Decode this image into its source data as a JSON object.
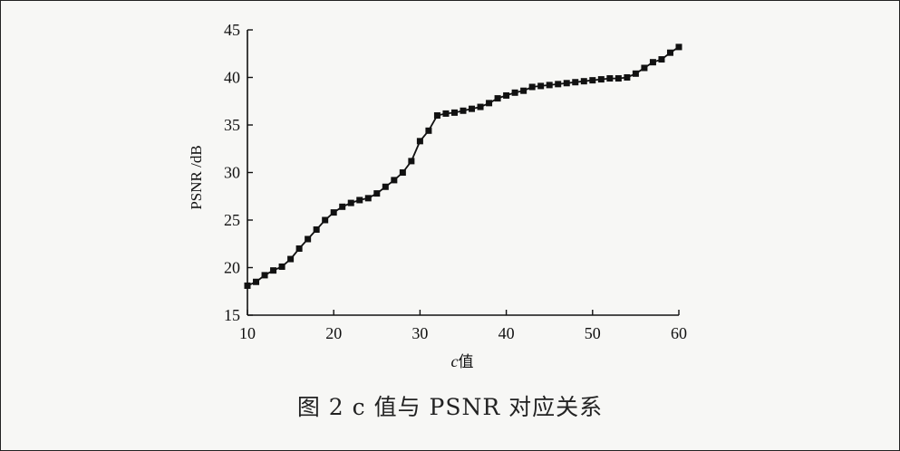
{
  "figure": {
    "caption": "图 2    c 值与 PSNR 对应关系"
  },
  "chart_data": {
    "type": "line",
    "xlabel_var": "c",
    "xlabel_suffix": "值",
    "ylabel": "PSNR /dB",
    "xlim": [
      10,
      60
    ],
    "ylim": [
      15,
      45
    ],
    "xticks": [
      10,
      20,
      30,
      40,
      50,
      60
    ],
    "yticks": [
      15,
      20,
      25,
      30,
      35,
      40,
      45
    ],
    "grid": false,
    "marker": "square",
    "x": [
      10,
      11,
      12,
      13,
      14,
      15,
      16,
      17,
      18,
      19,
      20,
      21,
      22,
      23,
      24,
      25,
      26,
      27,
      28,
      29,
      30,
      31,
      32,
      33,
      34,
      35,
      36,
      37,
      38,
      39,
      40,
      41,
      42,
      43,
      44,
      45,
      46,
      47,
      48,
      49,
      50,
      51,
      52,
      53,
      54,
      55,
      56,
      57,
      58,
      59,
      60
    ],
    "y": [
      18.1,
      18.5,
      19.2,
      19.7,
      20.1,
      20.9,
      22.0,
      23.0,
      24.0,
      25.0,
      25.8,
      26.4,
      26.8,
      27.1,
      27.3,
      27.8,
      28.5,
      29.2,
      30.0,
      31.2,
      33.3,
      34.4,
      36.0,
      36.2,
      36.3,
      36.5,
      36.7,
      36.9,
      37.3,
      37.8,
      38.1,
      38.4,
      38.6,
      39.0,
      39.1,
      39.2,
      39.3,
      39.4,
      39.5,
      39.6,
      39.7,
      39.8,
      39.9,
      39.9,
      40.0,
      40.4,
      41.0,
      41.6,
      41.9,
      42.6,
      43.2
    ]
  }
}
